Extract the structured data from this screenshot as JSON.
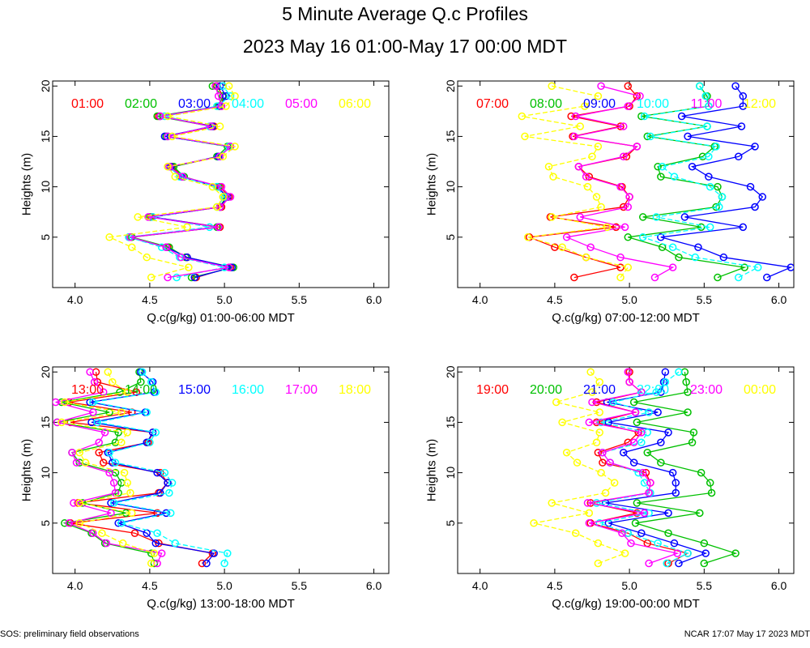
{
  "page": {
    "title": "5 Minute Average Q.c Profiles",
    "subtitle": "2023 May 16 01:00-May 17 00:00 MDT",
    "footer_left": "SOS: preliminary field observations",
    "footer_right": "NCAR 17:07 May 17 2023 MDT"
  },
  "chart_data": [
    {
      "type": "line",
      "title": "",
      "xlabel": "Q.c(g/kg) 01:00-06:00 MDT",
      "ylabel": "Heights (m)",
      "xlim": [
        3.85,
        6.1
      ],
      "ylim": [
        0,
        20.5
      ],
      "xticks": [
        4.0,
        4.5,
        5.0,
        5.5,
        6.0
      ],
      "xtick_labels": [
        "4.0",
        "4.5",
        "5.0",
        "5.5",
        "6.0"
      ],
      "yticks": [
        5,
        10,
        15,
        20
      ],
      "ytick_labels": [
        "5",
        "10",
        "15",
        "20"
      ],
      "heights": [
        1,
        2,
        3,
        4,
        5,
        6,
        7,
        8,
        9,
        10,
        11,
        12,
        13,
        14,
        15,
        16,
        17,
        18,
        19,
        20
      ],
      "series": [
        {
          "name": "01:00",
          "color": "#ff0000",
          "values": [
            4.81,
            5.04,
            4.75,
            4.62,
            4.37,
            4.97,
            4.51,
            4.98,
            5.03,
            4.97,
            4.72,
            4.65,
            4.97,
            5.03,
            4.62,
            4.93,
            4.56,
            4.98,
            4.99,
            4.95
          ]
        },
        {
          "name": "02:00",
          "color": "#00c000",
          "values": [
            4.78,
            5.06,
            4.74,
            4.63,
            4.38,
            4.95,
            4.5,
            4.97,
            5.01,
            4.96,
            4.73,
            4.66,
            4.95,
            5.02,
            4.61,
            4.91,
            4.55,
            4.96,
            4.99,
            4.92
          ]
        },
        {
          "name": "03:00",
          "color": "#0000ff",
          "values": [
            4.8,
            5.05,
            4.75,
            4.61,
            4.36,
            4.96,
            4.52,
            4.97,
            5.02,
            4.95,
            4.71,
            4.64,
            4.96,
            5.04,
            4.6,
            4.92,
            4.57,
            4.97,
            5.01,
            4.97
          ]
        },
        {
          "name": "04:00",
          "color": "#00ffff",
          "values": [
            4.68,
            5.0,
            4.7,
            4.58,
            4.36,
            4.9,
            4.52,
            4.95,
            5.0,
            4.95,
            4.7,
            4.63,
            4.97,
            5.03,
            4.62,
            4.9,
            4.6,
            4.95,
            5.04,
            4.99
          ]
        },
        {
          "name": "05:00",
          "color": "#ff00ff",
          "values": [
            4.62,
            5.03,
            4.71,
            4.61,
            4.37,
            4.96,
            4.49,
            4.97,
            5.04,
            4.98,
            4.72,
            4.63,
            4.97,
            5.04,
            4.62,
            4.91,
            4.57,
            4.98,
            4.96,
            4.94
          ]
        },
        {
          "name": "06:00",
          "color": "#ffff00",
          "values": [
            4.51,
            4.76,
            4.48,
            4.38,
            4.23,
            4.75,
            4.42,
            4.95,
            4.99,
            4.92,
            4.67,
            4.62,
            4.99,
            5.07,
            4.65,
            4.97,
            4.62,
            5.01,
            5.07,
            5.03
          ]
        }
      ]
    },
    {
      "type": "line",
      "title": "",
      "xlabel": "Q.c(g/kg) 07:00-12:00 MDT",
      "ylabel": "Heights (m)",
      "xlim": [
        3.85,
        6.1
      ],
      "ylim": [
        0,
        20.5
      ],
      "xticks": [
        4.0,
        4.5,
        5.0,
        5.5,
        6.0
      ],
      "xtick_labels": [
        "4.0",
        "4.5",
        "5.0",
        "5.5",
        "6.0"
      ],
      "yticks": [
        5,
        10,
        15,
        20
      ],
      "ytick_labels": [
        "5",
        "10",
        "15",
        "20"
      ],
      "heights": [
        1,
        2,
        3,
        4,
        5,
        6,
        7,
        8,
        9,
        10,
        11,
        12,
        13,
        14,
        15,
        16,
        17,
        18,
        19,
        20
      ],
      "series": [
        {
          "name": "07:00",
          "color": "#ff0000",
          "values": [
            4.63,
            4.94,
            4.71,
            4.5,
            4.33,
            4.91,
            4.47,
            4.96,
            5.0,
            4.95,
            4.73,
            4.66,
            4.98,
            5.05,
            4.62,
            4.94,
            4.61,
            5.0,
            5.05,
            4.99
          ]
        },
        {
          "name": "08:00",
          "color": "#00c000",
          "values": [
            5.59,
            5.77,
            5.33,
            5.22,
            4.99,
            5.48,
            5.09,
            5.58,
            5.62,
            5.59,
            5.21,
            5.19,
            5.49,
            5.57,
            5.12,
            5.52,
            5.08,
            5.53,
            5.52,
            5.47
          ]
        },
        {
          "name": "09:00",
          "color": "#0000ff",
          "values": [
            5.92,
            6.08,
            5.63,
            5.46,
            5.21,
            5.76,
            5.37,
            5.84,
            5.89,
            5.81,
            5.53,
            5.42,
            5.73,
            5.84,
            5.39,
            5.75,
            5.35,
            5.76,
            5.76,
            5.71
          ]
        },
        {
          "name": "10:00",
          "color": "#00ffff",
          "values": [
            5.73,
            5.86,
            5.44,
            5.29,
            5.09,
            5.54,
            5.18,
            5.6,
            5.62,
            5.54,
            5.3,
            5.22,
            5.53,
            5.58,
            5.14,
            5.52,
            5.1,
            5.53,
            5.51,
            5.47
          ]
        },
        {
          "name": "11:00",
          "color": "#ff00ff",
          "values": [
            5.17,
            5.29,
            4.94,
            4.74,
            4.58,
            4.97,
            4.67,
            4.99,
            5.0,
            4.94,
            4.71,
            4.66,
            4.96,
            5.05,
            4.63,
            4.96,
            4.64,
            4.99,
            5.07,
            4.81
          ]
        },
        {
          "name": "12:00",
          "color": "#ffff00",
          "values": [
            4.94,
            4.99,
            4.71,
            4.55,
            4.32,
            4.85,
            4.48,
            4.81,
            4.78,
            4.72,
            4.49,
            4.46,
            4.75,
            4.79,
            4.3,
            4.67,
            4.28,
            4.7,
            4.79,
            4.48
          ]
        }
      ]
    },
    {
      "type": "line",
      "title": "",
      "xlabel": "Q.c(g/kg) 13:00-18:00 MDT",
      "ylabel": "Heights (m)",
      "xlim": [
        3.85,
        6.1
      ],
      "ylim": [
        0,
        20.5
      ],
      "xticks": [
        4.0,
        4.5,
        5.0,
        5.5,
        6.0
      ],
      "xtick_labels": [
        "4.0",
        "4.5",
        "5.0",
        "5.5",
        "6.0"
      ],
      "yticks": [
        5,
        10,
        15,
        20
      ],
      "ytick_labels": [
        "5",
        "10",
        "15",
        "20"
      ],
      "heights": [
        1,
        2,
        3,
        4,
        5,
        6,
        7,
        8,
        9,
        10,
        11,
        12,
        13,
        14,
        15,
        16,
        17,
        18,
        19,
        20
      ],
      "series": [
        {
          "name": "13:00",
          "color": "#ff0000",
          "values": [
            4.85,
            4.92,
            4.56,
            4.4,
            3.97,
            4.55,
            4.02,
            4.56,
            4.62,
            4.57,
            4.19,
            4.16,
            4.49,
            4.52,
            3.97,
            4.38,
            3.96,
            4.41,
            4.15,
            4.14
          ]
        },
        {
          "name": "14:00",
          "color": "#00c000",
          "values": [
            4.53,
            4.51,
            4.2,
            4.11,
            3.93,
            4.34,
            4.05,
            4.29,
            4.31,
            4.27,
            4.03,
            3.98,
            4.27,
            4.29,
            3.88,
            4.23,
            3.91,
            4.3,
            4.44,
            4.43
          ]
        },
        {
          "name": "15:00",
          "color": "#0000ff",
          "values": [
            4.88,
            4.93,
            4.54,
            4.48,
            4.29,
            4.61,
            4.24,
            4.57,
            4.62,
            4.55,
            4.25,
            4.22,
            4.48,
            4.52,
            4.11,
            4.47,
            4.1,
            4.53,
            4.52,
            4.44
          ]
        },
        {
          "name": "16:00",
          "color": "#00ffff",
          "values": [
            5.0,
            5.02,
            4.67,
            4.55,
            4.31,
            4.64,
            4.26,
            4.63,
            4.65,
            4.6,
            4.27,
            4.23,
            4.5,
            4.54,
            4.15,
            4.48,
            4.12,
            4.54,
            4.51,
            4.45
          ]
        },
        {
          "name": "17:00",
          "color": "#ff00ff",
          "values": [
            4.55,
            4.58,
            4.21,
            4.12,
            3.96,
            4.24,
            3.99,
            4.27,
            4.26,
            4.23,
            4.01,
            3.98,
            4.16,
            4.2,
            3.88,
            4.12,
            3.87,
            4.19,
            4.13,
            4.1
          ]
        },
        {
          "name": "18:00",
          "color": "#ffff00",
          "values": [
            4.51,
            4.53,
            4.32,
            4.18,
            4.03,
            4.38,
            4.03,
            4.37,
            4.35,
            4.33,
            4.07,
            4.03,
            4.31,
            4.35,
            3.91,
            4.31,
            3.93,
            4.35,
            4.25,
            4.22
          ]
        }
      ]
    },
    {
      "type": "line",
      "title": "",
      "xlabel": "Q.c(g/kg) 19:00-00:00 MDT",
      "ylabel": "Heights (m)",
      "xlim": [
        3.85,
        6.1
      ],
      "ylim": [
        0,
        20.5
      ],
      "xticks": [
        4.0,
        4.5,
        5.0,
        5.5,
        6.0
      ],
      "xtick_labels": [
        "4.0",
        "4.5",
        "5.0",
        "5.5",
        "6.0"
      ],
      "yticks": [
        5,
        10,
        15,
        20
      ],
      "ytick_labels": [
        "5",
        "10",
        "15",
        "20"
      ],
      "heights": [
        1,
        2,
        3,
        4,
        5,
        6,
        7,
        8,
        9,
        10,
        11,
        12,
        13,
        14,
        15,
        16,
        17,
        18,
        19,
        20
      ],
      "series": [
        {
          "name": "19:00",
          "color": "#ff0000",
          "values": [
            5.26,
            5.39,
            5.12,
            4.99,
            4.74,
            5.05,
            4.74,
            5.13,
            5.14,
            5.11,
            4.82,
            4.79,
            4.99,
            5.06,
            4.78,
            5.04,
            4.78,
            5.08,
            5.0,
            5.0
          ]
        },
        {
          "name": "20:00",
          "color": "#00c000",
          "values": [
            5.5,
            5.71,
            5.5,
            5.26,
            5.04,
            5.47,
            5.05,
            5.55,
            5.54,
            5.48,
            5.21,
            5.12,
            5.42,
            5.43,
            5.05,
            5.39,
            5.03,
            5.39,
            5.38,
            5.37
          ]
        },
        {
          "name": "21:00",
          "color": "#0000ff",
          "values": [
            5.33,
            5.51,
            5.3,
            5.08,
            4.86,
            5.26,
            4.84,
            5.31,
            5.31,
            5.29,
            5.03,
            4.96,
            5.21,
            5.26,
            4.86,
            5.19,
            4.85,
            5.21,
            5.23,
            5.24
          ]
        },
        {
          "name": "22:00",
          "color": "#00ffff",
          "values": [
            5.25,
            5.39,
            5.19,
            4.99,
            4.8,
            5.13,
            4.78,
            5.14,
            5.1,
            5.06,
            4.87,
            4.82,
            5.08,
            5.12,
            4.81,
            5.13,
            4.89,
            5.18,
            5.24,
            5.33
          ]
        },
        {
          "name": "23:00",
          "color": "#ff00ff",
          "values": [
            5.13,
            5.32,
            5.01,
            4.95,
            4.73,
            5.1,
            4.72,
            5.13,
            5.14,
            5.09,
            4.87,
            4.82,
            5.03,
            5.08,
            4.73,
            5.04,
            4.75,
            5.08,
            5.0,
            4.99
          ]
        },
        {
          "name": "00:00",
          "color": "#ffff00",
          "values": [
            4.79,
            4.97,
            4.79,
            4.64,
            4.36,
            4.73,
            4.48,
            4.84,
            4.9,
            4.81,
            4.65,
            4.58,
            4.78,
            4.8,
            4.55,
            4.8,
            4.51,
            4.75,
            4.8,
            4.74
          ]
        }
      ]
    }
  ]
}
